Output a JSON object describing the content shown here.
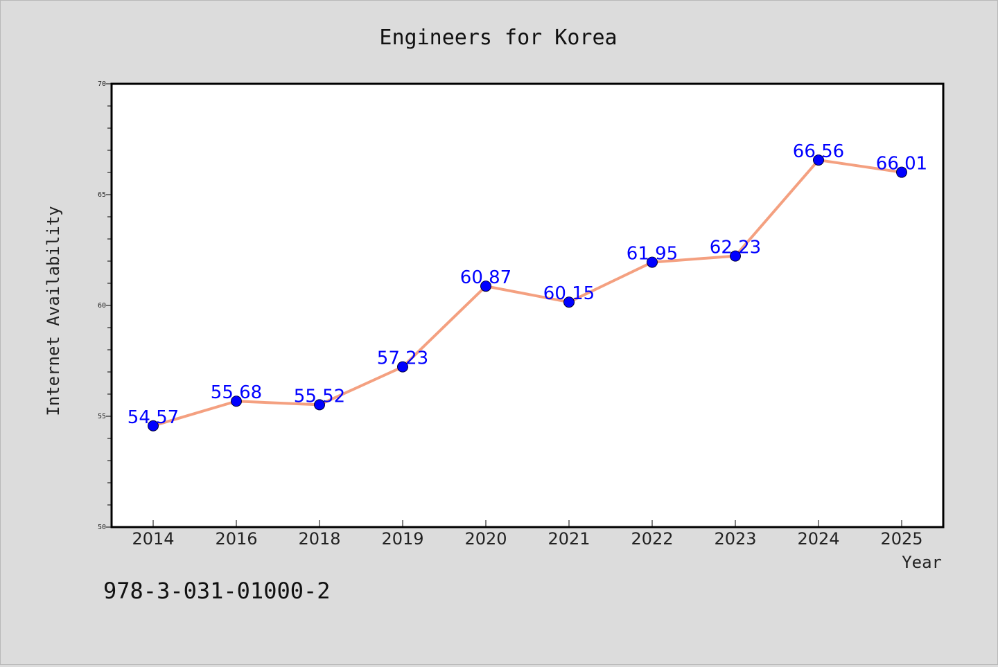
{
  "chart_data": {
    "type": "line",
    "title": "Engineers for Korea",
    "xlabel": "Year",
    "ylabel": "Internet Availability",
    "categories": [
      "2014",
      "2016",
      "2018",
      "2019",
      "2020",
      "2021",
      "2022",
      "2023",
      "2024",
      "2025"
    ],
    "series": [
      {
        "values": [
          54.57,
          55.68,
          55.52,
          57.23,
          60.87,
          60.15,
          61.95,
          62.23,
          66.56,
          66.01
        ],
        "labels": [
          "54.57",
          "55.68",
          "55.52",
          "57.23",
          "60.87",
          "60.15",
          "61.95",
          "62.23",
          "66.56",
          "66.01"
        ],
        "line_color": "#f4a080",
        "marker_color": "#0000ff"
      }
    ],
    "ylim": [
      50,
      70
    ],
    "yticks": [
      "50",
      "55",
      "60",
      "65",
      "70"
    ],
    "y_minor_step": 1,
    "grid": false
  },
  "footnote": "978-3-031-01000-2"
}
